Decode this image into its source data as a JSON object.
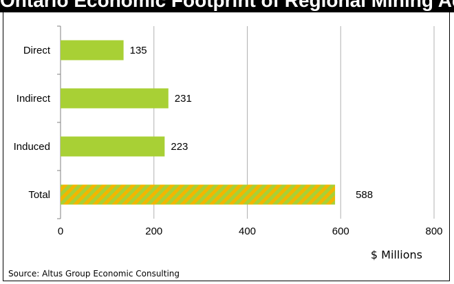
{
  "header": {
    "title": "Ontario Economic Footprint of Regional Mining Activity"
  },
  "source": "Source: Altus Group Economic Consulting",
  "colors": {
    "bar": "#a8d035",
    "stripe_a": "#a8d035",
    "stripe_b": "#f2b600",
    "grid": "#b0b0b0"
  },
  "chart_data": {
    "type": "bar",
    "orientation": "horizontal",
    "categories": [
      "Direct",
      "Indirect",
      "Induced",
      "Total"
    ],
    "values": [
      135,
      231,
      223,
      588
    ],
    "data_labels": [
      "135",
      "231",
      "223",
      "588"
    ],
    "xlabel": "$ Millions",
    "xlim": [
      0,
      800
    ],
    "xticks": [
      0,
      200,
      400,
      600,
      800
    ],
    "xtick_labels": [
      "0",
      "200",
      "400",
      "600",
      "800"
    ],
    "grid": "vertical",
    "highlight": {
      "category": "Total",
      "fill": "diagonal-stripes"
    }
  }
}
